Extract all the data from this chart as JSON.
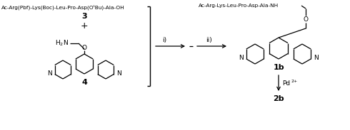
{
  "bg_color": "#ffffff",
  "fig_width": 4.9,
  "fig_height": 1.83,
  "dpi": 100,
  "peptide_protected": "Ac-Arg(Pbf)-Lys(Boc)-Leu-Pro-Asp(OᵗBu)-Ala-OH",
  "label_3": "3",
  "plus": "+",
  "label_4": "4",
  "peptide_deprotected": "Ac-Arg-Lys-Leu-Pro-Asp-Ala-NH",
  "label_1b": "1b",
  "arrow_i": "i)",
  "arrow_ii": "ii)",
  "pd": "Pd",
  "pd_sup": "2+",
  "label_2b": "2b",
  "colors": {
    "text": "#000000",
    "line": "#000000",
    "background": "#ffffff"
  }
}
